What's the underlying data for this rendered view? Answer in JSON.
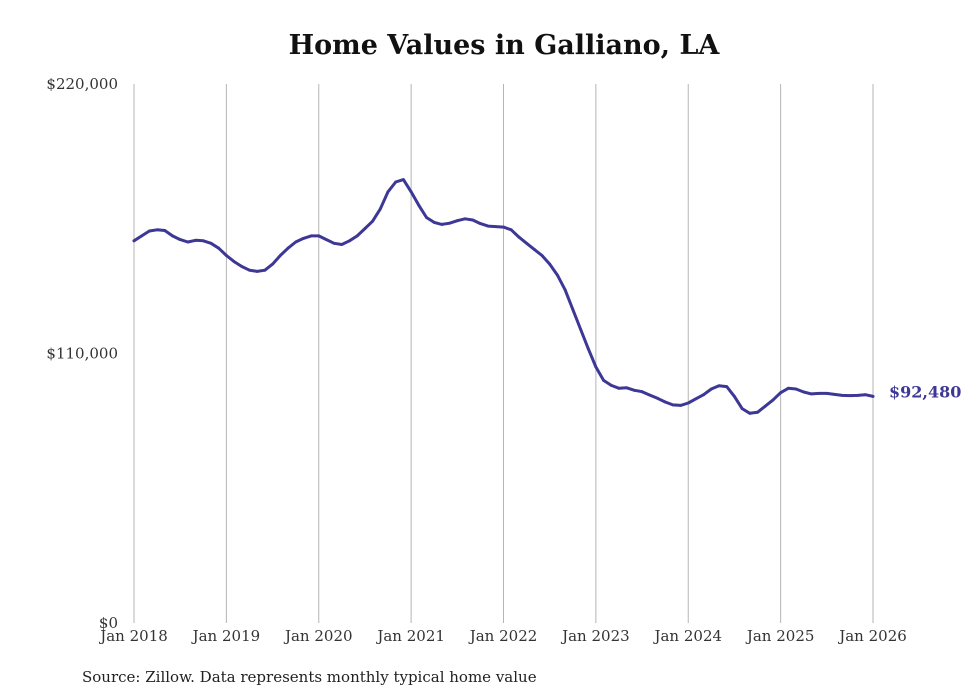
{
  "chart_data": {
    "type": "line",
    "title": "Home Values in Galliano, LA",
    "xlabel": "",
    "ylabel": "",
    "x_ticks": [
      "Jan 2018",
      "Jan 2019",
      "Jan 2020",
      "Jan 2021",
      "Jan 2022",
      "Jan 2023",
      "Jan 2024",
      "Jan 2025",
      "Jan 2026"
    ],
    "y_ticks": [
      "$0",
      "$110,000",
      "$220,000"
    ],
    "y_tick_values": [
      0,
      110000,
      220000
    ],
    "ylim": [
      0,
      220000
    ],
    "xlim": [
      "2018-01",
      "2026-01"
    ],
    "grid": "vertical lines at x ticks",
    "line_color": "#3d3795",
    "end_label": "$92,480",
    "series": [
      {
        "x": [
          "2018-01",
          "2018-02",
          "2018-03",
          "2018-04",
          "2018-05",
          "2018-06",
          "2018-07",
          "2018-08",
          "2018-09",
          "2018-10",
          "2018-11",
          "2018-12",
          "2019-01",
          "2019-02",
          "2019-03",
          "2019-04",
          "2019-05",
          "2019-06",
          "2019-07",
          "2019-08",
          "2019-09",
          "2019-10",
          "2019-11",
          "2019-12",
          "2020-01",
          "2020-02",
          "2020-03",
          "2020-04",
          "2020-05",
          "2020-06",
          "2020-07",
          "2020-08",
          "2020-09",
          "2020-10",
          "2020-11",
          "2020-12",
          "2021-01",
          "2021-02",
          "2021-03",
          "2021-04",
          "2021-05",
          "2021-06",
          "2021-07",
          "2021-08",
          "2021-09",
          "2021-10",
          "2021-11",
          "2021-12",
          "2022-01",
          "2022-02",
          "2022-03",
          "2022-04",
          "2022-05",
          "2022-06",
          "2022-07",
          "2022-08",
          "2022-09",
          "2022-10",
          "2022-11",
          "2022-12",
          "2023-01",
          "2023-02",
          "2023-03",
          "2023-04",
          "2023-05",
          "2023-06",
          "2023-07",
          "2023-08",
          "2023-09",
          "2023-10",
          "2023-11",
          "2023-12",
          "2024-01",
          "2024-02",
          "2024-03",
          "2024-04",
          "2024-05",
          "2024-06",
          "2024-07",
          "2024-08",
          "2024-09",
          "2024-10",
          "2024-11",
          "2024-12",
          "2025-01",
          "2025-02",
          "2025-03",
          "2025-04",
          "2025-05",
          "2025-06",
          "2025-07",
          "2025-08",
          "2025-09",
          "2025-10",
          "2025-11",
          "2025-12",
          "2026-01"
        ],
        "values": [
          156000,
          158000,
          160000,
          160500,
          160200,
          158000,
          156500,
          155500,
          156200,
          156000,
          155000,
          153000,
          150000,
          147500,
          145500,
          144000,
          143500,
          144000,
          146500,
          150000,
          153000,
          155500,
          157000,
          158000,
          158000,
          156500,
          155000,
          154500,
          156000,
          158000,
          161000,
          164000,
          169000,
          176000,
          180000,
          181000,
          176000,
          170500,
          165500,
          163500,
          162700,
          163200,
          164200,
          165000,
          164500,
          163000,
          162000,
          161800,
          161600,
          160500,
          157500,
          155000,
          152500,
          150000,
          146500,
          142000,
          136000,
          128000,
          120000,
          112000,
          104500,
          99000,
          97000,
          95800,
          96000,
          95000,
          94400,
          93000,
          91700,
          90200,
          89000,
          88800,
          89800,
          91500,
          93200,
          95500,
          96800,
          96500,
          92500,
          87500,
          85600,
          86000,
          88500,
          91000,
          94000,
          95800,
          95500,
          94300,
          93500,
          93700,
          93700,
          93300,
          92900,
          92800,
          92900,
          93200,
          92480
        ]
      }
    ]
  },
  "source_note": "Source: Zillow. Data represents monthly typical home value"
}
